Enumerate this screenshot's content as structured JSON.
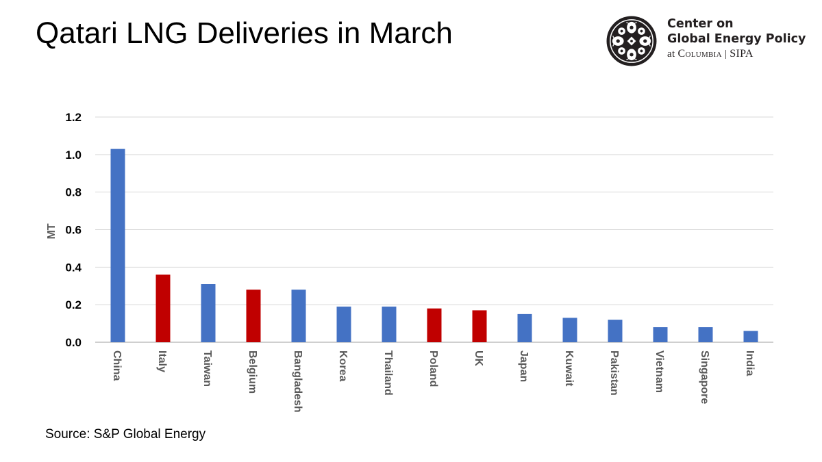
{
  "header": {
    "title": "Qatari LNG Deliveries in March"
  },
  "logo": {
    "line1": "Center on",
    "line2": "Global Energy Policy",
    "line3_prefix": "at ",
    "line3_columbia": "Columbia",
    "line3_separator": " | ",
    "line3_sipa": "SIPA",
    "seal_icon": "columbia-crown-seal-icon"
  },
  "footer": {
    "source": "Source: S&P Global Energy"
  },
  "colors": {
    "asia_bar": "#4472c4",
    "europe_bar": "#c00000",
    "grid": "#d9d9d9",
    "axis": "#bfbfbf"
  },
  "chart_data": {
    "type": "bar",
    "title": "Qatari LNG Deliveries in March",
    "xlabel": "",
    "ylabel": "MT",
    "ylim": [
      0,
      1.2
    ],
    "yticks": [
      "0.0",
      "0.2",
      "0.4",
      "0.6",
      "0.8",
      "1.0",
      "1.2"
    ],
    "grid": true,
    "categories": [
      "China",
      "Italy",
      "Taiwan",
      "Belgium",
      "Bangladesh",
      "Korea",
      "Thailand",
      "Poland",
      "UK",
      "Japan",
      "Kuwait",
      "Pakistan",
      "Vietnam",
      "Singapore",
      "India"
    ],
    "values": [
      1.03,
      0.36,
      0.31,
      0.28,
      0.28,
      0.19,
      0.19,
      0.18,
      0.17,
      0.15,
      0.13,
      0.12,
      0.08,
      0.08,
      0.06
    ],
    "bar_colors": [
      "#4472c4",
      "#c00000",
      "#4472c4",
      "#c00000",
      "#4472c4",
      "#4472c4",
      "#4472c4",
      "#c00000",
      "#c00000",
      "#4472c4",
      "#4472c4",
      "#4472c4",
      "#4472c4",
      "#4472c4",
      "#4472c4"
    ]
  }
}
